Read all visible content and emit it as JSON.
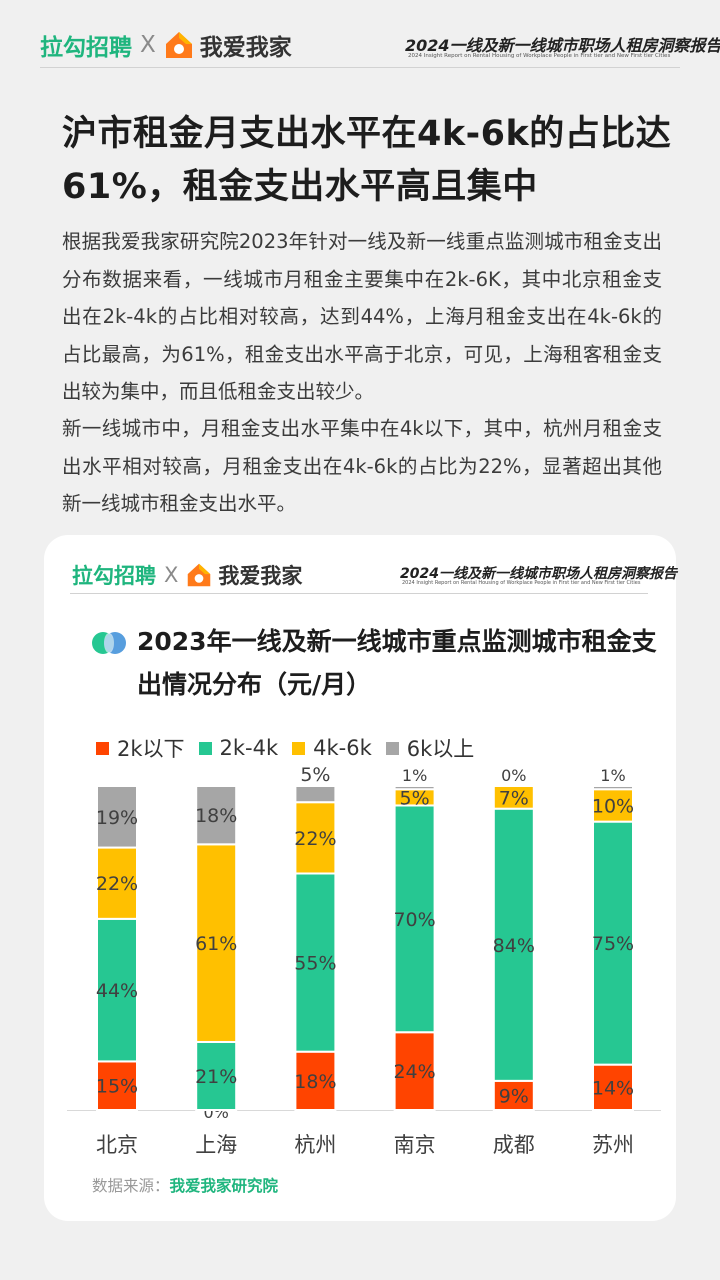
{
  "header": {
    "brand_left": "拉勾招聘",
    "separator": "X",
    "brand_right": "我爱我家",
    "report_title": "2024一线及新一线城市职场人租房洞察报告",
    "report_subtitle": "2024 Insight Report on Rental Housing of Workplace People in First tier and New First tier Cities"
  },
  "article": {
    "headline": "沪市租金月支出水平在4k-6k的占比达61%，租金支出水平高且集中",
    "paragraph1": "根据我爱我家研究院2023年针对一线及新一线重点监测城市租金支出分布数据来看，一线城市月租金主要集中在2k-6K，其中北京租金支出在2k-4k的占比相对较高，达到44%，上海月租金支出在4k-6k的占比最高，为61%，租金支出水平高于北京，可见，上海租客租金支出较为集中，而且低租金支出较少。",
    "paragraph2": "新一线城市中，月租金支出水平集中在4k以下，其中，杭州月租金支出水平相对较高，月租金支出在4k-6k的占比为22%，显著超出其他新一线城市租金支出水平。"
  },
  "card": {
    "chart_title": "2023年一线及新一线城市重点监测城市租金支出情况分布（元/月）",
    "source_label": "数据来源：",
    "source_value": "我爱我家研究院"
  },
  "colors": {
    "brand_green": "#1fb57e",
    "s_2k_below": "#ff4400",
    "s_2k_4k": "#26c792",
    "s_4k_6k": "#ffc000",
    "s_6k_above": "#a6a6a6"
  },
  "chart_data": {
    "type": "bar",
    "stacked": true,
    "categories": [
      "北京",
      "上海",
      "杭州",
      "南京",
      "成都",
      "苏州"
    ],
    "series": [
      {
        "name": "2k以下",
        "color": "#ff4400",
        "values": [
          15,
          0,
          18,
          24,
          9,
          14
        ]
      },
      {
        "name": "2k-4k",
        "color": "#26c792",
        "values": [
          44,
          21,
          55,
          70,
          84,
          75
        ]
      },
      {
        "name": "4k-6k",
        "color": "#ffc000",
        "values": [
          22,
          61,
          22,
          5,
          7,
          10
        ]
      },
      {
        "name": "6k以上",
        "color": "#a6a6a6",
        "values": [
          19,
          18,
          5,
          1,
          0,
          1
        ]
      }
    ],
    "value_suffix": "%",
    "ylim": [
      0,
      100
    ],
    "legend": "top-left",
    "grid": false
  }
}
